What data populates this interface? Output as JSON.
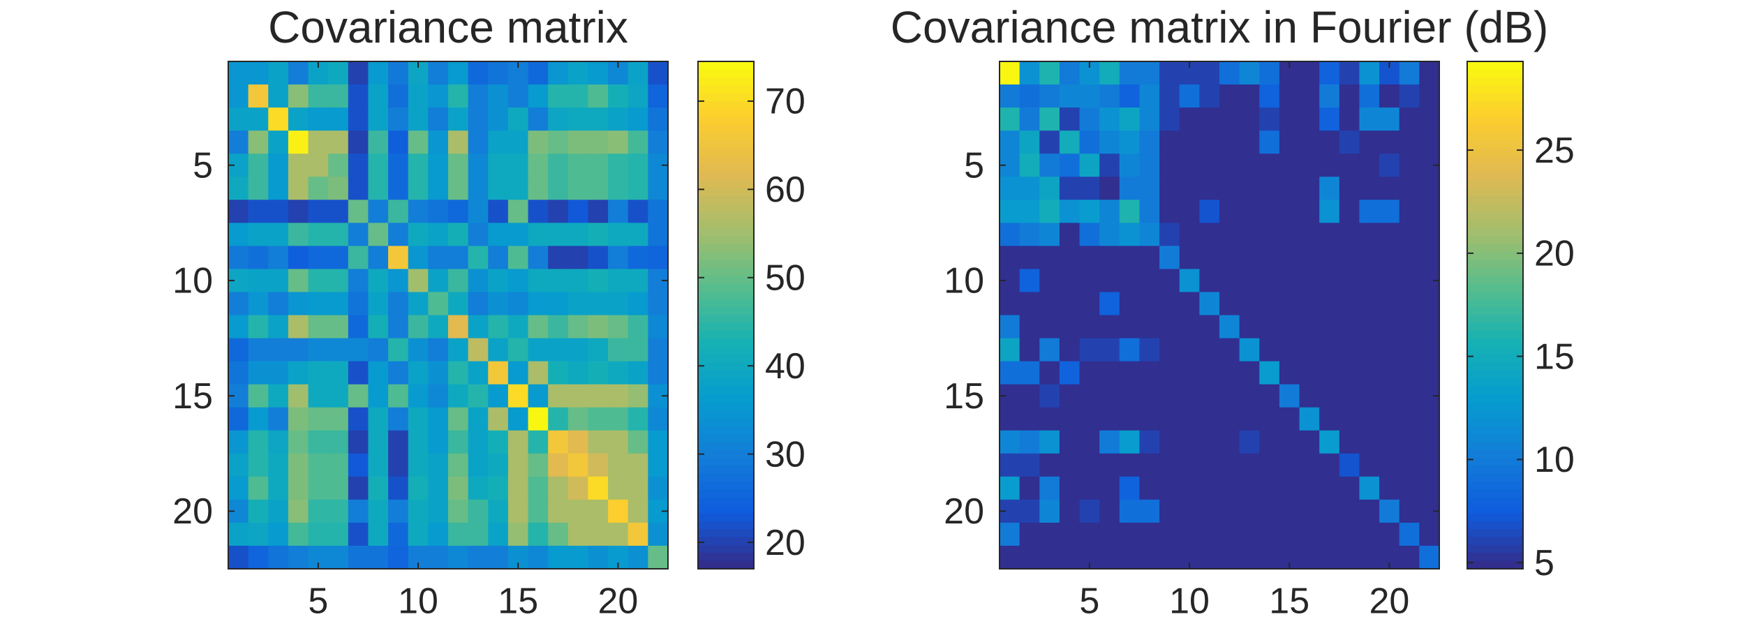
{
  "chart_data": [
    {
      "type": "heatmap",
      "title": "Covariance matrix",
      "size": 22,
      "x_ticks": [
        5,
        10,
        15,
        20
      ],
      "y_ticks": [
        5,
        10,
        15,
        20
      ],
      "colorbar": {
        "range": [
          17,
          74.5
        ],
        "ticks": [
          20,
          30,
          40,
          50,
          60,
          70
        ]
      },
      "colormap": "parula",
      "z": [
        [
          35,
          35,
          38,
          30,
          38,
          40,
          20,
          36,
          29,
          39,
          30,
          36,
          26,
          28,
          30,
          26,
          35,
          38,
          36,
          32,
          38,
          22
        ],
        [
          35,
          66,
          38,
          53,
          46,
          46,
          22,
          38,
          27,
          38,
          35,
          44,
          30,
          34,
          30,
          36,
          44,
          44,
          48,
          42,
          39,
          25
        ],
        [
          38,
          38,
          70,
          38,
          36,
          36,
          22,
          38,
          30,
          38,
          30,
          38,
          30,
          34,
          40,
          30,
          39,
          40,
          40,
          38,
          36,
          28
        ],
        [
          30,
          53,
          38,
          73,
          56,
          56,
          20,
          46,
          24,
          50,
          35,
          56,
          30,
          38,
          38,
          52,
          50,
          52,
          52,
          53,
          47,
          30
        ],
        [
          38,
          46,
          36,
          56,
          56,
          50,
          22,
          44,
          26,
          44,
          36,
          50,
          32,
          40,
          40,
          50,
          46,
          48,
          48,
          45,
          44,
          32
        ],
        [
          40,
          46,
          36,
          56,
          50,
          52,
          22,
          44,
          26,
          44,
          36,
          50,
          32,
          40,
          40,
          50,
          46,
          48,
          48,
          45,
          44,
          32
        ],
        [
          20,
          22,
          22,
          20,
          22,
          22,
          50,
          30,
          46,
          30,
          28,
          26,
          32,
          22,
          50,
          22,
          20,
          23,
          20,
          30,
          22,
          28
        ],
        [
          36,
          38,
          38,
          46,
          44,
          44,
          30,
          50,
          30,
          40,
          38,
          42,
          30,
          36,
          36,
          40,
          40,
          40,
          42,
          40,
          40,
          28
        ],
        [
          29,
          27,
          30,
          24,
          26,
          26,
          46,
          30,
          66,
          35,
          30,
          30,
          44,
          30,
          48,
          30,
          20,
          20,
          22,
          30,
          26,
          25
        ],
        [
          39,
          38,
          38,
          50,
          44,
          44,
          30,
          40,
          35,
          55,
          38,
          46,
          34,
          38,
          36,
          40,
          40,
          40,
          42,
          40,
          40,
          30
        ],
        [
          30,
          35,
          30,
          35,
          36,
          36,
          28,
          38,
          30,
          38,
          48,
          40,
          30,
          34,
          32,
          36,
          36,
          38,
          38,
          38,
          36,
          30
        ],
        [
          36,
          44,
          38,
          56,
          50,
          50,
          26,
          42,
          30,
          46,
          40,
          62,
          38,
          44,
          40,
          50,
          46,
          50,
          52,
          50,
          46,
          32
        ],
        [
          26,
          30,
          30,
          30,
          32,
          32,
          32,
          30,
          44,
          34,
          30,
          38,
          58,
          38,
          44,
          38,
          38,
          38,
          40,
          46,
          46,
          30
        ],
        [
          28,
          34,
          34,
          38,
          40,
          40,
          22,
          36,
          30,
          38,
          34,
          44,
          38,
          66,
          36,
          56,
          42,
          40,
          42,
          40,
          38,
          30
        ],
        [
          30,
          48,
          40,
          55,
          40,
          40,
          50,
          36,
          48,
          36,
          32,
          40,
          44,
          36,
          70,
          36,
          56,
          56,
          56,
          56,
          54,
          34
        ],
        [
          26,
          36,
          30,
          52,
          50,
          50,
          22,
          40,
          30,
          40,
          36,
          50,
          38,
          56,
          36,
          74,
          44,
          50,
          48,
          48,
          44,
          32
        ],
        [
          35,
          44,
          39,
          50,
          46,
          46,
          20,
          40,
          20,
          40,
          36,
          46,
          38,
          42,
          56,
          44,
          66,
          62,
          56,
          56,
          50,
          36
        ],
        [
          38,
          44,
          40,
          52,
          48,
          48,
          23,
          40,
          20,
          40,
          38,
          50,
          38,
          40,
          56,
          50,
          62,
          66,
          60,
          56,
          56,
          36
        ],
        [
          36,
          48,
          40,
          52,
          48,
          48,
          20,
          42,
          22,
          42,
          38,
          52,
          40,
          42,
          56,
          48,
          56,
          60,
          70,
          56,
          56,
          34
        ],
        [
          32,
          42,
          38,
          53,
          45,
          45,
          30,
          40,
          30,
          40,
          38,
          50,
          46,
          40,
          56,
          48,
          56,
          56,
          56,
          68,
          56,
          36
        ],
        [
          38,
          39,
          36,
          47,
          44,
          44,
          22,
          40,
          26,
          40,
          36,
          46,
          46,
          38,
          54,
          44,
          50,
          56,
          56,
          56,
          66,
          34
        ],
        [
          22,
          25,
          28,
          30,
          32,
          32,
          28,
          28,
          25,
          30,
          30,
          32,
          30,
          30,
          34,
          32,
          36,
          36,
          34,
          36,
          34,
          50
        ]
      ]
    },
    {
      "type": "heatmap",
      "title": "Covariance matrix in Fourier (dB)",
      "size": 22,
      "x_ticks": [
        5,
        10,
        15,
        20
      ],
      "y_ticks": [
        5,
        10,
        15,
        20
      ],
      "colorbar": {
        "range": [
          4.7,
          29.3
        ],
        "ticks": [
          5,
          10,
          15,
          20,
          25
        ]
      },
      "colormap": "parula",
      "z": [
        [
          29,
          12,
          16,
          10,
          12,
          15,
          10,
          10,
          6,
          6,
          6,
          9,
          11,
          9,
          5,
          5,
          8,
          6,
          12,
          7,
          10,
          5
        ],
        [
          10,
          9,
          10,
          11,
          11,
          10,
          8,
          11,
          6,
          9,
          6,
          5,
          5,
          8,
          5,
          5,
          10,
          5,
          9,
          5,
          6,
          5
        ],
        [
          16,
          10,
          16,
          6,
          10,
          12,
          14,
          11,
          6,
          5,
          5,
          5,
          5,
          6,
          5,
          5,
          8,
          5,
          11,
          11,
          5,
          5
        ],
        [
          11,
          14,
          6,
          15,
          9,
          11,
          12,
          10,
          5,
          5,
          5,
          5,
          5,
          9,
          5,
          5,
          5,
          6,
          5,
          5,
          5,
          5
        ],
        [
          11,
          15,
          10,
          9,
          14,
          6,
          11,
          10,
          5,
          5,
          5,
          5,
          5,
          5,
          5,
          5,
          5,
          5,
          5,
          6,
          5,
          5
        ],
        [
          12,
          12,
          14,
          6,
          6,
          5,
          10,
          10,
          5,
          5,
          5,
          5,
          5,
          5,
          5,
          5,
          11,
          5,
          5,
          5,
          5,
          5
        ],
        [
          13,
          13,
          15,
          12,
          13,
          11,
          16,
          10,
          5,
          5,
          7,
          5,
          5,
          5,
          5,
          5,
          12,
          5,
          9,
          9,
          5,
          5
        ],
        [
          9,
          10,
          11,
          5,
          9,
          11,
          12,
          11,
          6,
          5,
          5,
          5,
          5,
          5,
          5,
          5,
          5,
          5,
          5,
          5,
          5,
          5
        ],
        [
          5,
          5,
          5,
          5,
          5,
          5,
          5,
          5,
          10,
          5,
          5,
          5,
          5,
          5,
          5,
          5,
          5,
          5,
          5,
          5,
          5,
          5
        ],
        [
          5,
          8,
          5,
          5,
          5,
          5,
          5,
          5,
          5,
          12,
          5,
          5,
          5,
          5,
          5,
          5,
          5,
          5,
          5,
          5,
          5,
          5
        ],
        [
          5,
          5,
          5,
          5,
          5,
          8,
          5,
          5,
          5,
          5,
          11,
          5,
          5,
          5,
          5,
          5,
          5,
          5,
          5,
          5,
          5,
          5
        ],
        [
          10,
          5,
          5,
          5,
          5,
          5,
          5,
          5,
          5,
          5,
          5,
          11,
          5,
          5,
          5,
          5,
          5,
          5,
          5,
          5,
          5,
          5
        ],
        [
          14,
          5,
          10,
          5,
          6,
          6,
          9,
          6,
          5,
          5,
          5,
          5,
          12,
          5,
          5,
          5,
          5,
          5,
          5,
          5,
          5,
          5
        ],
        [
          9,
          9,
          5,
          8,
          5,
          5,
          5,
          5,
          5,
          5,
          5,
          5,
          5,
          13,
          5,
          5,
          5,
          5,
          5,
          5,
          5,
          5
        ],
        [
          5,
          5,
          6,
          5,
          5,
          5,
          5,
          5,
          5,
          5,
          5,
          5,
          5,
          5,
          10,
          5,
          5,
          5,
          5,
          5,
          5,
          5
        ],
        [
          5,
          5,
          5,
          5,
          5,
          5,
          5,
          5,
          5,
          5,
          5,
          5,
          5,
          5,
          5,
          12,
          5,
          5,
          5,
          5,
          5,
          5
        ],
        [
          11,
          10,
          12,
          5,
          5,
          10,
          13,
          6,
          5,
          5,
          5,
          5,
          6,
          5,
          5,
          5,
          13,
          5,
          5,
          5,
          5,
          5
        ],
        [
          6,
          6,
          5,
          5,
          5,
          5,
          5,
          5,
          5,
          5,
          5,
          5,
          5,
          5,
          5,
          5,
          5,
          7,
          5,
          5,
          5,
          5
        ],
        [
          13,
          5,
          10,
          5,
          5,
          5,
          8,
          5,
          5,
          5,
          5,
          5,
          5,
          5,
          5,
          5,
          5,
          5,
          12,
          5,
          5,
          5
        ],
        [
          6,
          6,
          11,
          5,
          6,
          5,
          9,
          9,
          5,
          5,
          5,
          5,
          5,
          5,
          5,
          5,
          5,
          5,
          5,
          10,
          5,
          5
        ],
        [
          10,
          5,
          5,
          5,
          5,
          5,
          5,
          5,
          5,
          5,
          5,
          5,
          5,
          5,
          5,
          5,
          5,
          5,
          5,
          5,
          9,
          5
        ],
        [
          5,
          5,
          5,
          5,
          5,
          5,
          5,
          5,
          5,
          5,
          5,
          5,
          5,
          5,
          5,
          5,
          5,
          5,
          5,
          5,
          5,
          9
        ]
      ]
    }
  ]
}
